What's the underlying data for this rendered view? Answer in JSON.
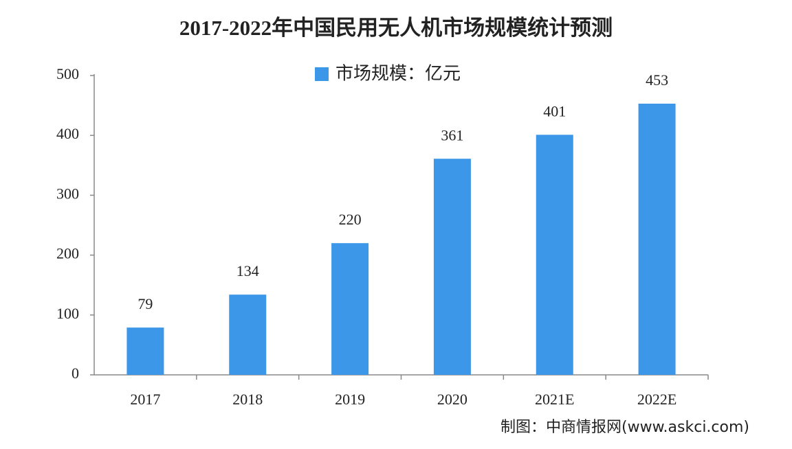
{
  "chart_data": {
    "type": "bar",
    "title": "2017-2022年中国民用无人机市场规模统计预测",
    "categories": [
      "2017",
      "2018",
      "2019",
      "2020",
      "2021E",
      "2022E"
    ],
    "series": [
      {
        "name": "市场规模：亿元",
        "color": "#3c97e8",
        "values": [
          79,
          134,
          220,
          361,
          401,
          453
        ]
      }
    ],
    "ylim": [
      0,
      500
    ],
    "yticks": [
      0,
      100,
      200,
      300,
      400,
      500
    ],
    "grid": false,
    "source": "制图：中商情报网(www.askci.com)"
  }
}
